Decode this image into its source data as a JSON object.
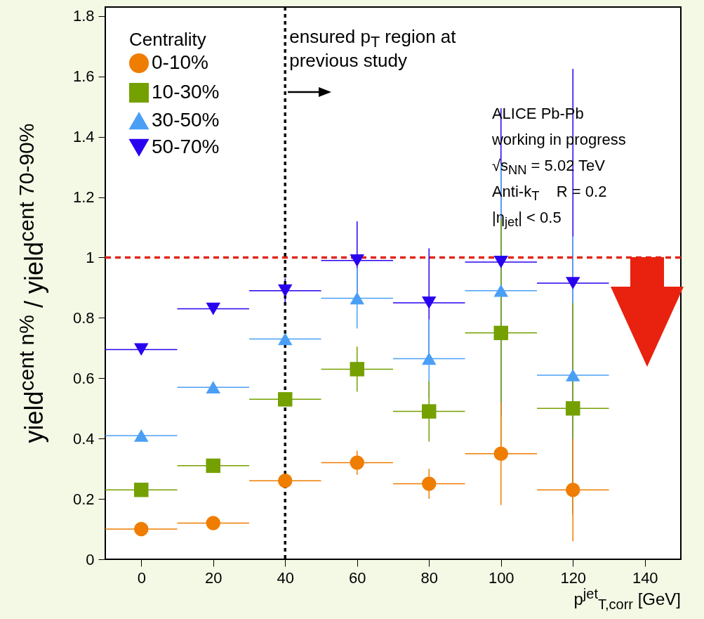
{
  "chart_data": {
    "type": "scatter",
    "xlabel": "p$^{jet}$$_{T,corr}$ [GeV]",
    "ylabel": "yield$^{cent n%}$ / yield$^{cent 70-90%}$",
    "legend_title": "Centrality",
    "legend": "top left",
    "x": [
      0,
      20,
      40,
      60,
      80,
      100,
      120
    ],
    "xlim": [
      -10,
      150
    ],
    "xticks": [
      0,
      20,
      40,
      60,
      80,
      100,
      120,
      140
    ],
    "ylim": [
      0,
      1.83
    ],
    "yticks": [
      0,
      0.2,
      0.4,
      0.6,
      0.8,
      1,
      1.2,
      1.4,
      1.6,
      1.8
    ],
    "grid": false,
    "series": [
      {
        "name": "0-10%",
        "color": "#ee7d00",
        "marker": "circle",
        "values": [
          0.1,
          0.12,
          0.26,
          0.32,
          0.25,
          0.35,
          0.23
        ],
        "errors": [
          null,
          null,
          null,
          0.04,
          0.05,
          0.17,
          0.17
        ],
        "xerrors": [
          10,
          10,
          10,
          10,
          10,
          10,
          10
        ]
      },
      {
        "name": "10-30%",
        "color": "#74a100",
        "marker": "square",
        "values": [
          0.23,
          0.31,
          0.53,
          0.63,
          0.49,
          0.75,
          0.5
        ],
        "errors": [
          null,
          null,
          null,
          0.075,
          0.1,
          0.38,
          0.35
        ],
        "xerrors": [
          10,
          10,
          10,
          10,
          10,
          10,
          10
        ]
      },
      {
        "name": "30-50%",
        "color": "#4a9ff5",
        "marker": "triangle",
        "values": [
          0.41,
          0.57,
          0.73,
          0.865,
          0.665,
          0.89,
          0.61
        ],
        "errors": [
          null,
          null,
          0.03,
          0.1,
          0.13,
          0.42,
          0.46
        ],
        "xerrors": [
          10,
          10,
          10,
          10,
          10,
          10,
          10
        ]
      },
      {
        "name": "50-70%",
        "color": "#2a00f0",
        "marker": "triangle-down",
        "values": [
          0.695,
          0.83,
          0.89,
          0.99,
          0.85,
          0.985,
          0.915
        ],
        "errors": [
          null,
          null,
          0.04,
          0.13,
          0.18,
          0.51,
          0.71
        ],
        "xerrors": [
          10,
          10,
          10,
          10,
          10,
          10,
          10
        ]
      }
    ],
    "ref_lines": [
      {
        "axis": "y",
        "value": 1,
        "color": "#e3261a",
        "line_style": "dashed"
      },
      {
        "axis": "x",
        "value": 40,
        "color": "#000000",
        "line_style": "dotted",
        "label": "ensured p$_{T}$ region at previous study"
      }
    ],
    "annotations": [
      "ALICE Pb-Pb",
      "working in progress",
      "√s$_{NN}$ = 5.02 TeV",
      "Anti-k$_{T}$    R = 0.2",
      "|η$_{jet}$| < 0.5"
    ]
  }
}
